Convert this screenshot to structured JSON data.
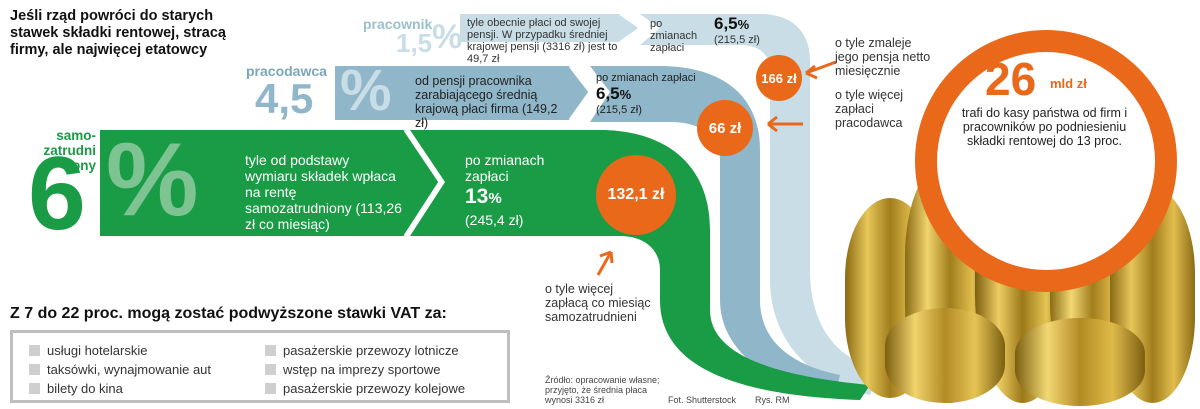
{
  "title": "Jeśli rząd powróci do starych stawek składki rentowej, stracą firmy, ale najwięcej etatowcy",
  "colors": {
    "green": "#1a9b45",
    "mid_blue": "#8fb6c9",
    "light_blue": "#c9dde6",
    "orange": "#e9681a",
    "gray": "#bfbfbf"
  },
  "rows": {
    "pracownik": {
      "label": "pracownik",
      "rate": "1,5",
      "percent": "%",
      "desc": "tyle obecnie płaci od swojej pensji. W przypadku średniej krajowej pensji (3316 zł) jest to 49,7 zł",
      "after_label": "po zmianach zapłaci",
      "after_rate": "6,5",
      "after_pct": "%",
      "after_amount": "(215,5 zł)",
      "diff": "166 zł",
      "diff_note": "o tyle zmaleje jego pensja netto miesięcznie"
    },
    "pracodawca": {
      "label": "pracodawca",
      "rate": "4,5",
      "percent": "%",
      "desc": "od pensji pracownika zarabiającego średnią krajową płaci firma (149,2 zł)",
      "after_label": "po zmianach zapłaci",
      "after_rate": "6,5",
      "after_pct": "%",
      "after_amount": "(215,5 zł)",
      "diff": "66 zł",
      "diff_note": "o tyle więcej zapłaci pracodawca"
    },
    "samozatrudniony": {
      "label": "samozatrudniony",
      "rate": "6",
      "percent": "%",
      "desc": "tyle od podstawy wymiaru składek wpłaca na rentę samozatrudniony (113,26 zł co miesiąc)",
      "after_label": "po zmianach zapłaci",
      "after_rate": "13",
      "after_pct": "%",
      "after_amount": "(245,4 zł)",
      "diff": "132,1 zł",
      "diff_note": "o tyle więcej zapłacą co miesiąc samozatrudnieni"
    }
  },
  "total": {
    "value": "26",
    "unit": "mld zł",
    "note": "trafi do kasy państwa od firm i pracowników po podniesieniu składki rentowej do 13 proc."
  },
  "vat": {
    "heading": "Z 7 do 22 proc. mogą zostać podwyższone stawki VAT za:",
    "col1": [
      "usługi hotelarskie",
      "taksówki, wynajmowanie aut",
      "bilety do kina"
    ],
    "col2": [
      "pasażerskie przewozy lotnicze",
      "wstęp na imprezy sportowe",
      "pasażerskie przewozy kolejowe"
    ]
  },
  "footer": {
    "source": "Źródło: opracowanie własne; przyjęto, że średnia płaca wynosi 3316 zł",
    "photo": "Fot. Shutterstock",
    "drawing": "Rys. RM"
  }
}
